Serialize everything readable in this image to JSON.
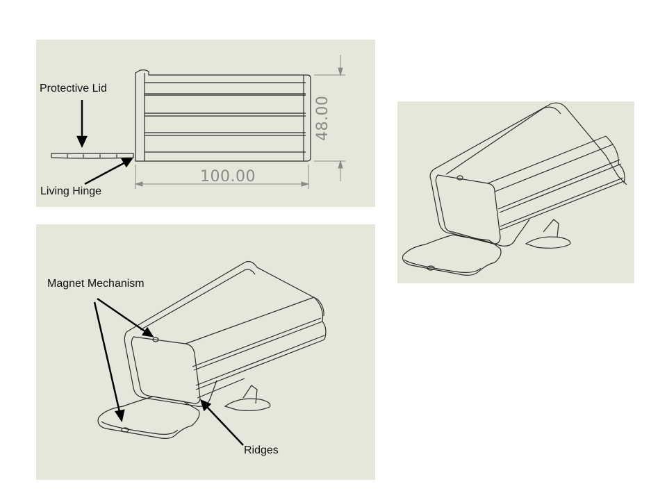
{
  "labels": {
    "protective_lid": "Protective Lid",
    "living_hinge": "Living Hinge",
    "magnet_mechanism": "Magnet Mechanism",
    "ridges": "Ridges"
  },
  "dimensions": {
    "width": "100.00",
    "height": "48.00"
  },
  "colors": {
    "panel_background": "#e7e6da",
    "line": "#2a2a2a",
    "dimension": "#8a8a86"
  }
}
